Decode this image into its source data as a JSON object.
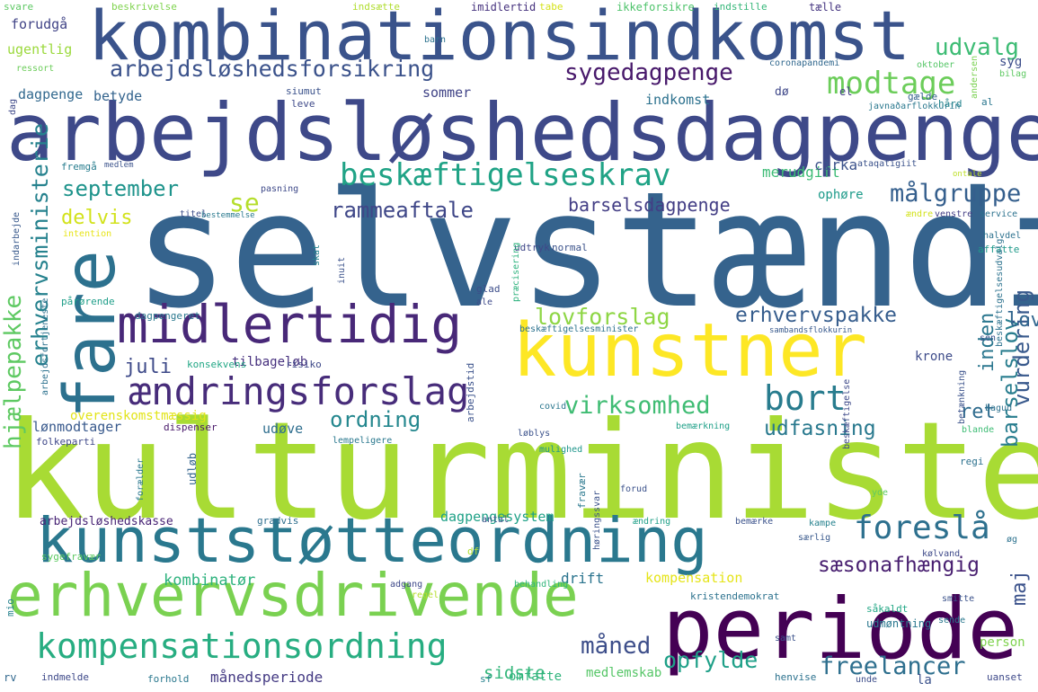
{
  "words": [
    {
      "text": "selvstændig",
      "color": "#35638d"
    },
    {
      "text": "kulturministerie",
      "color": "#a8db34"
    },
    {
      "text": "arbejdsløshedsdagpenge",
      "color": "#3e4989"
    },
    {
      "text": "kombinationsindkomst",
      "color": "#3a538b"
    },
    {
      "text": "kunststøtteordning",
      "color": "#2a788e"
    },
    {
      "text": "erhvervsdrivende",
      "color": "#7ad151"
    },
    {
      "text": "periode",
      "color": "#440154"
    },
    {
      "text": "kunstner",
      "color": "#fde725"
    },
    {
      "text": "fare",
      "color": "#2c718e"
    },
    {
      "text": "midlertidig",
      "color": "#482878"
    },
    {
      "text": "kompensationsordning",
      "color": "#27ad81"
    },
    {
      "text": "ændringsforslag",
      "color": "#472c7a"
    },
    {
      "text": "beskæftigelseskrav",
      "color": "#20a386"
    },
    {
      "text": "arbejdsløshedsforsikring",
      "color": "#3b528b"
    },
    {
      "text": "modtage",
      "color": "#6ccd5a"
    },
    {
      "text": "sygedagpenge",
      "color": "#48196b"
    },
    {
      "text": "udvalg",
      "color": "#3dbc74"
    },
    {
      "text": "foreslå",
      "color": "#2d708e"
    },
    {
      "text": "bort",
      "color": "#287c8e"
    },
    {
      "text": "september",
      "color": "#1f948c"
    },
    {
      "text": "målgruppe",
      "color": "#355f8d"
    },
    {
      "text": "lovforslag",
      "color": "#8ed645"
    },
    {
      "text": "erhvervspakke",
      "color": "#365d8d"
    },
    {
      "text": "virksomhed",
      "color": "#3fbc73"
    },
    {
      "text": "hjælpepakke",
      "color": "#5ec962"
    },
    {
      "text": "erhvervsministerie",
      "color": "#26828e"
    },
    {
      "text": "rammeaftale",
      "color": "#3f4788"
    },
    {
      "text": "barselsdagpenge",
      "color": "#433e85"
    },
    {
      "text": "sæsonafhængig",
      "color": "#481f70"
    },
    {
      "text": "freelancer",
      "color": "#2e6f8e"
    },
    {
      "text": "opfylde",
      "color": "#1fa088"
    },
    {
      "text": "måned",
      "color": "#3d4e8a"
    },
    {
      "text": "udfasning",
      "color": "#29798e"
    },
    {
      "text": "ordning",
      "color": "#24878e"
    },
    {
      "text": "barselslov",
      "color": "#287d8e"
    },
    {
      "text": "vurdering",
      "color": "#38598c"
    },
    {
      "text": "juli",
      "color": "#3e4a89"
    },
    {
      "text": "delvis",
      "color": "#d2e21b"
    },
    {
      "text": "se",
      "color": "#b5de2b"
    },
    {
      "text": "inden",
      "color": "#2a768e"
    },
    {
      "text": "lov",
      "color": "#31668e"
    },
    {
      "text": "ret",
      "color": "#2f6c8e"
    },
    {
      "text": "maj",
      "color": "#3b528b"
    },
    {
      "text": "kombinatør",
      "color": "#2db27d"
    },
    {
      "text": "sidste",
      "color": "#32b67a"
    },
    {
      "text": "indkomst",
      "color": "#2c718e"
    },
    {
      "text": "betyde",
      "color": "#33638d"
    },
    {
      "text": "sommer",
      "color": "#414487"
    },
    {
      "text": "dagpenge",
      "color": "#31688e"
    },
    {
      "text": "merudgift",
      "color": "#3cbb75"
    },
    {
      "text": "cirka",
      "color": "#3b528b"
    },
    {
      "text": "ophøre",
      "color": "#1e9b8a"
    },
    {
      "text": "ugentlig",
      "color": "#9bd93c"
    },
    {
      "text": "forudgå",
      "color": "#414487"
    },
    {
      "text": "kompensation",
      "color": "#e5e419"
    },
    {
      "text": "månedsperiode",
      "color": "#443a83"
    },
    {
      "text": "medlemskab",
      "color": "#56c667"
    },
    {
      "text": "omfatte",
      "color": "#2fb47c"
    },
    {
      "text": "drift",
      "color": "#2b748e"
    },
    {
      "text": "lønmodtager",
      "color": "#38598c"
    },
    {
      "text": "tilbageløb",
      "color": "#46307e"
    },
    {
      "text": "overenskomstmæssig",
      "color": "#e2e418"
    },
    {
      "text": "udøve",
      "color": "#2e6e8e"
    },
    {
      "text": "arbejdsløshedskasse",
      "color": "#482475"
    },
    {
      "text": "dagpengesystem",
      "color": "#1fa187"
    },
    {
      "text": "krone",
      "color": "#3e4c8a"
    },
    {
      "text": "person",
      "color": "#7fd34e"
    },
    {
      "text": "udmøntning",
      "color": "#2a778e"
    },
    {
      "text": "svare",
      "color": "#5dc863"
    },
    {
      "text": "beskrivelse",
      "color": "#7fd34e"
    },
    {
      "text": "indsætte",
      "color": "#b0dd2f"
    },
    {
      "text": "imidlertid",
      "color": "#46327e"
    },
    {
      "text": "tabe",
      "color": "#d5e21a"
    },
    {
      "text": "ikkeforsikre",
      "color": "#4ec36b"
    },
    {
      "text": "indstille",
      "color": "#35b779"
    },
    {
      "text": "tælle",
      "color": "#453581"
    },
    {
      "text": "syg",
      "color": "#3d4e8a"
    },
    {
      "text": "bilag",
      "color": "#5ec962"
    },
    {
      "text": "oktober",
      "color": "#56c667"
    },
    {
      "text": "andersen",
      "color": "#7ad151"
    },
    {
      "text": "coronapandemi",
      "color": "#31688e"
    },
    {
      "text": "ressort",
      "color": "#6ccd5a"
    },
    {
      "text": "barn",
      "color": "#2c728e"
    },
    {
      "text": "siumut",
      "color": "#3b528b"
    },
    {
      "text": "leve",
      "color": "#3e4989"
    },
    {
      "text": "dø",
      "color": "#3f4889"
    },
    {
      "text": "el",
      "color": "#433e85"
    },
    {
      "text": "gælde",
      "color": "#34618d"
    },
    {
      "text": "javnaðarflokkurin",
      "color": "#2a788e"
    },
    {
      "text": "al",
      "color": "#2a768e"
    },
    {
      "text": "hård",
      "color": "#25848e"
    },
    {
      "text": "medlem",
      "color": "#3b528b"
    },
    {
      "text": "fremgå",
      "color": "#287d8e"
    },
    {
      "text": "ataqatigiit",
      "color": "#3b528b"
    },
    {
      "text": "ontale",
      "color": "#bddf26"
    },
    {
      "text": "pasning",
      "color": "#3e4989"
    },
    {
      "text": "titel",
      "color": "#3d4e8a"
    },
    {
      "text": "bestemmelse",
      "color": "#29798e"
    },
    {
      "text": "ændre",
      "color": "#d2e21b"
    },
    {
      "text": "venstre",
      "color": "#433e85"
    },
    {
      "text": "service",
      "color": "#2c728e"
    },
    {
      "text": "intention",
      "color": "#e7e419"
    },
    {
      "text": "halvdel",
      "color": "#2c718e"
    },
    {
      "text": "affatte",
      "color": "#1f9a8a"
    },
    {
      "text": "udtryk",
      "color": "#3f4788"
    },
    {
      "text": "normal",
      "color": "#3b528b"
    },
    {
      "text": "skat",
      "color": "#26828e"
    },
    {
      "text": "inuit",
      "color": "#3b528b"
    },
    {
      "text": "pårørende",
      "color": "#1f9e89"
    },
    {
      "text": "glad",
      "color": "#3d4e8a"
    },
    {
      "text": "præcisering",
      "color": "#2db27d"
    },
    {
      "text": "ale",
      "color": "#3e4a89"
    },
    {
      "text": "dagpengeret",
      "color": "#2a788e"
    },
    {
      "text": "beskæftigelsesminister",
      "color": "#2c728e"
    },
    {
      "text": "sambandsflokkurin",
      "color": "#38598c"
    },
    {
      "text": "sen",
      "color": "#3b528b"
    },
    {
      "text": "konsekvens",
      "color": "#22a785"
    },
    {
      "text": "risiko",
      "color": "#3e4989"
    },
    {
      "text": "covid",
      "color": "#2a768e"
    },
    {
      "text": "bagud",
      "color": "#2c718e"
    },
    {
      "text": "folkeparti",
      "color": "#3f4889"
    },
    {
      "text": "dispenser",
      "color": "#48186a"
    },
    {
      "text": "lempeligere",
      "color": "#2a788e"
    },
    {
      "text": "løblys",
      "color": "#3b528b"
    },
    {
      "text": "mulighed",
      "color": "#1f968b"
    },
    {
      "text": "bemærkning",
      "color": "#1fa088"
    },
    {
      "text": "blande",
      "color": "#3dbc74"
    },
    {
      "text": "regi",
      "color": "#2c718e"
    },
    {
      "text": "forud",
      "color": "#3b528b"
    },
    {
      "text": "yde",
      "color": "#5ec962"
    },
    {
      "text": "gradvis",
      "color": "#2e6f8e"
    },
    {
      "text": "antal",
      "color": "#3b528b"
    },
    {
      "text": "ændring",
      "color": "#1fa088"
    },
    {
      "text": "bemærke",
      "color": "#3b528b"
    },
    {
      "text": "kampe",
      "color": "#26828e"
    },
    {
      "text": "særlig",
      "color": "#38598c"
    },
    {
      "text": "kølvand",
      "color": "#3e4989"
    },
    {
      "text": "øg",
      "color": "#2c728e"
    },
    {
      "text": "sygefravær",
      "color": "#5ec962"
    },
    {
      "text": "adgang",
      "color": "#3e4989"
    },
    {
      "text": "behandling",
      "color": "#32b67a"
    },
    {
      "text": "regel",
      "color": "#b5de2b"
    },
    {
      "text": "kristendemokrat",
      "color": "#2c728e"
    },
    {
      "text": "smitte",
      "color": "#3b528b"
    },
    {
      "text": "såkaldt",
      "color": "#22a785"
    },
    {
      "text": "sende",
      "color": "#2a788e"
    },
    {
      "text": "samt",
      "color": "#3b528b"
    },
    {
      "text": "mio",
      "color": "#26828e"
    },
    {
      "text": "rv",
      "color": "#31688e"
    },
    {
      "text": "indmelde",
      "color": "#3e4989"
    },
    {
      "text": "forhold",
      "color": "#2a788e"
    },
    {
      "text": "sf",
      "color": "#26828e"
    },
    {
      "text": "henvise",
      "color": "#2c728e"
    },
    {
      "text": "unde",
      "color": "#3d4e8a"
    },
    {
      "text": "uanset",
      "color": "#3e4989"
    },
    {
      "text": "df",
      "color": "#b0dd2f"
    },
    {
      "text": "udløb",
      "color": "#33638d"
    },
    {
      "text": "arbejdstid",
      "color": "#3b528b"
    },
    {
      "text": "fravær",
      "color": "#2a788e"
    },
    {
      "text": "høringssvar",
      "color": "#3b528b"
    },
    {
      "text": "arbejdsfortjeneste",
      "color": "#2c718e"
    },
    {
      "text": "indarbejde",
      "color": "#38598c"
    },
    {
      "text": "forælder",
      "color": "#2a788e"
    },
    {
      "text": "beskæftigelse",
      "color": "#3e4989"
    },
    {
      "text": "beskæftigelsesudvalg",
      "color": "#2c728e"
    },
    {
      "text": "betænkning",
      "color": "#3b528b"
    },
    {
      "text": "dag",
      "color": "#3e4989"
    },
    {
      "text": "la",
      "color": "#3b528b"
    }
  ]
}
